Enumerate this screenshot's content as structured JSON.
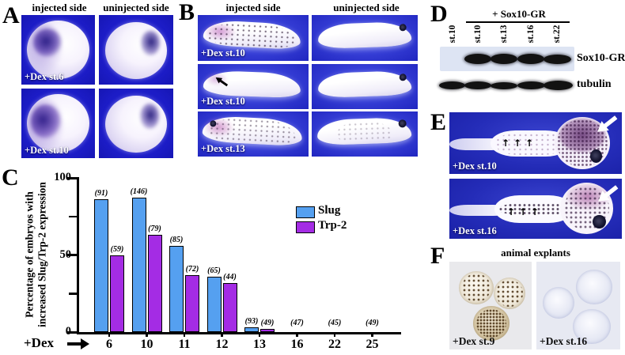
{
  "icons": {
    "up_arrow": "↑"
  },
  "figure": {
    "panelA": {
      "letter": "A",
      "headers": [
        "injected side",
        "uninjected side"
      ],
      "row_labels": [
        "+Dex st.6",
        "+Dex st.10"
      ]
    },
    "panelB": {
      "letter": "B",
      "headers": [
        "injected side",
        "uninjected side"
      ],
      "row_labels": [
        "+Dex st.10",
        "+Dex st.10",
        "+Dex st.13"
      ]
    },
    "panelC": {
      "letter": "C"
    },
    "panelD": {
      "letter": "D",
      "treatment_header": "+ Sox10-GR",
      "lane_labels": [
        "st.10",
        "st.10",
        "st.13",
        "st.16",
        "st.22"
      ],
      "blot_labels": [
        "Sox10-GR",
        "tubulin"
      ]
    },
    "panelE": {
      "letter": "E",
      "image_labels": [
        "+Dex st.10",
        "+Dex st.16"
      ]
    },
    "panelF": {
      "letter": "F",
      "header": "animal explants",
      "image_labels": [
        "+Dex st.9",
        "+Dex st.16"
      ]
    }
  },
  "chart_data": {
    "type": "bar",
    "title": "",
    "ylabel_lines": [
      "Percentage of embryos with",
      "increased Slug/Trp-2 expression"
    ],
    "xlabel_prefix": "+Dex",
    "ylim": [
      0,
      100
    ],
    "yticks": [
      0,
      50,
      100
    ],
    "yticks_minor": [
      25,
      75
    ],
    "categories": [
      "6",
      "10",
      "11",
      "12",
      "13",
      "16",
      "22",
      "25"
    ],
    "series": [
      {
        "name": "Slug",
        "color": "#55a0f0",
        "values": [
          86,
          87,
          56,
          36,
          3,
          0,
          0,
          0
        ],
        "counts": [
          "(91)",
          "(146)",
          "(85)",
          "(65)",
          "(93)",
          "",
          "",
          ""
        ]
      },
      {
        "name": "Trp-2",
        "color": "#a42ce4",
        "values": [
          50,
          63,
          37,
          32,
          2,
          0,
          0,
          0
        ],
        "counts": [
          "(59)",
          "(79)",
          "(72)",
          "(44)",
          "(49)",
          "",
          "",
          ""
        ]
      }
    ],
    "axis_counts": [
      "",
      "",
      "",
      "",
      "",
      "(47)",
      "(45)",
      "(49)"
    ],
    "legend_position": "upper right",
    "grid": false
  }
}
